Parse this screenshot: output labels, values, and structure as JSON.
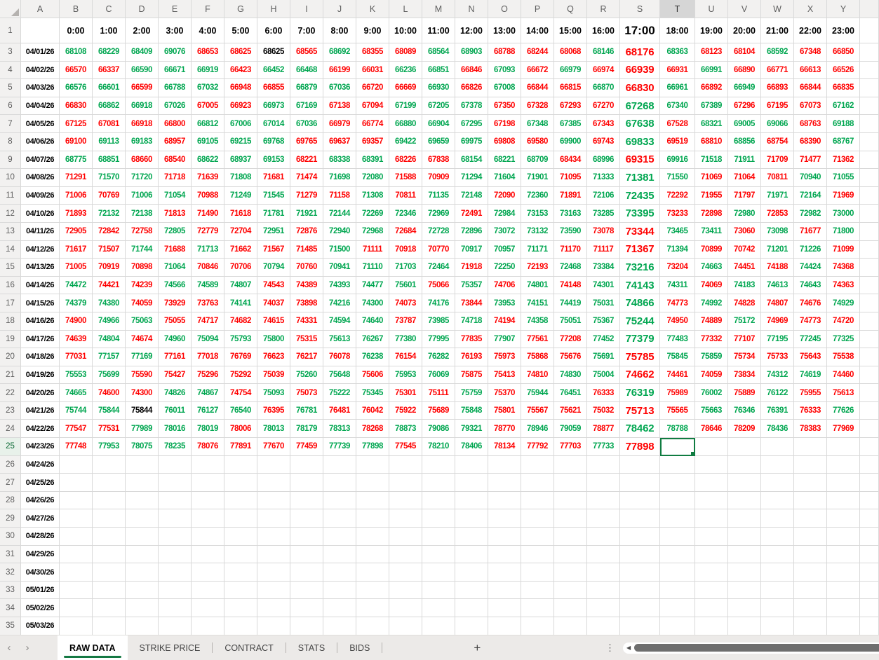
{
  "grid": {
    "col_letters": [
      "A",
      "B",
      "C",
      "D",
      "E",
      "F",
      "G",
      "H",
      "I",
      "J",
      "K",
      "L",
      "M",
      "N",
      "O",
      "P",
      "Q",
      "R",
      "S",
      "T",
      "U",
      "V",
      "W",
      "X",
      "Y"
    ],
    "row1_label": "1",
    "times": [
      "0:00",
      "1:00",
      "2:00",
      "3:00",
      "4:00",
      "5:00",
      "6:00",
      "7:00",
      "8:00",
      "9:00",
      "10:00",
      "11:00",
      "12:00",
      "13:00",
      "14:00",
      "15:00",
      "16:00",
      "17:00",
      "18:00",
      "19:00",
      "20:00",
      "21:00",
      "22:00",
      "23:00"
    ],
    "emphasized_column": "S",
    "active_cell": {
      "reference": "T25",
      "column": "T",
      "row": 25,
      "col_index": 18
    },
    "cell_color_legend": {
      "g": "green #00A650",
      "r": "red #FF0000",
      "k": "black #000000"
    },
    "colors": {
      "green": "#00A650",
      "red": "#FF0000",
      "black": "#000000",
      "accent_green": "#107C41"
    }
  },
  "data_rows": [
    {
      "n": 3,
      "date": "04/01/26",
      "cells": [
        "68108g",
        "68229g",
        "68409g",
        "69076g",
        "68653r",
        "68625r",
        "68625k",
        "68565r",
        "68692g",
        "68355r",
        "68089r",
        "68564g",
        "68903g",
        "68788r",
        "68244r",
        "68068r",
        "68146g",
        "68176r",
        "68363g",
        "68123r",
        "68104r",
        "68592g",
        "67348r",
        "66850r"
      ]
    },
    {
      "n": 4,
      "date": "04/02/26",
      "cells": [
        "66570r",
        "66337r",
        "66590g",
        "66671g",
        "66919g",
        "66423r",
        "66452g",
        "66468g",
        "66199r",
        "66031r",
        "66236g",
        "66851g",
        "66846r",
        "67093g",
        "66672r",
        "66979g",
        "66974r",
        "66939r",
        "66931r",
        "66991g",
        "66890r",
        "66771r",
        "66613r",
        "66526r"
      ]
    },
    {
      "n": 5,
      "date": "04/03/26",
      "cells": [
        "66576g",
        "66601g",
        "66599r",
        "66788g",
        "67032g",
        "66948r",
        "66855r",
        "66879g",
        "67036g",
        "66720r",
        "66669r",
        "66930g",
        "66826r",
        "67008g",
        "66844r",
        "66815r",
        "66870g",
        "66830r",
        "66961g",
        "66892r",
        "66949g",
        "66893r",
        "66844r",
        "66835r"
      ]
    },
    {
      "n": 6,
      "date": "04/04/26",
      "cells": [
        "66830r",
        "66862g",
        "66918g",
        "67026g",
        "67005r",
        "66923r",
        "66973g",
        "67169g",
        "67138r",
        "67094r",
        "67199g",
        "67205g",
        "67378g",
        "67350r",
        "67328r",
        "67293r",
        "67270r",
        "67268g",
        "67340g",
        "67389g",
        "67296r",
        "67195r",
        "67073r",
        "67162g"
      ]
    },
    {
      "n": 7,
      "date": "04/05/26",
      "cells": [
        "67125r",
        "67081r",
        "66918r",
        "66800r",
        "66812g",
        "67006g",
        "67014g",
        "67036g",
        "66979r",
        "66774r",
        "66880g",
        "66904g",
        "67295g",
        "67198r",
        "67348g",
        "67385g",
        "67343r",
        "67638g",
        "67528r",
        "68321g",
        "69005g",
        "69066g",
        "68763r",
        "69188g"
      ]
    },
    {
      "n": 8,
      "date": "04/06/26",
      "cells": [
        "69100r",
        "69113g",
        "69183g",
        "68957r",
        "69105g",
        "69215g",
        "69768g",
        "69765r",
        "69637r",
        "69357r",
        "69422g",
        "69659g",
        "69975g",
        "69808r",
        "69580r",
        "69900g",
        "69743r",
        "69833g",
        "69519r",
        "68810r",
        "68856g",
        "68754r",
        "68390r",
        "68767g"
      ]
    },
    {
      "n": 9,
      "date": "04/07/26",
      "cells": [
        "68775g",
        "68851g",
        "68660r",
        "68540r",
        "68622g",
        "68937g",
        "69153g",
        "68221r",
        "68338g",
        "68391g",
        "68226r",
        "67838r",
        "68154g",
        "68221g",
        "68709g",
        "68434r",
        "68996g",
        "69315r",
        "69916g",
        "71518g",
        "71911g",
        "71709r",
        "71477r",
        "71362r"
      ]
    },
    {
      "n": 10,
      "date": "04/08/26",
      "cells": [
        "71291r",
        "71570g",
        "71720g",
        "71718r",
        "71639r",
        "71808g",
        "71681r",
        "71474r",
        "71698g",
        "72080g",
        "71588r",
        "70909r",
        "71294g",
        "71604g",
        "71901g",
        "71095r",
        "71333g",
        "71381g",
        "71550g",
        "71069r",
        "71064r",
        "70811r",
        "70940g",
        "71055g"
      ]
    },
    {
      "n": 11,
      "date": "04/09/26",
      "cells": [
        "71006r",
        "70769r",
        "71006g",
        "71054g",
        "70988r",
        "71249g",
        "71545g",
        "71279r",
        "71158r",
        "71308g",
        "70811r",
        "71135g",
        "72148g",
        "72090r",
        "72360g",
        "71891r",
        "72106g",
        "72435g",
        "72292r",
        "71955r",
        "71797r",
        "71971g",
        "72164g",
        "71969r"
      ]
    },
    {
      "n": 12,
      "date": "04/10/26",
      "cells": [
        "71893r",
        "72132g",
        "72138g",
        "71813r",
        "71490r",
        "71618r",
        "71781g",
        "71921g",
        "72144g",
        "72269g",
        "72346g",
        "72969g",
        "72491r",
        "72984g",
        "73153g",
        "73163g",
        "73285g",
        "73395g",
        "73233r",
        "72898r",
        "72980g",
        "72853r",
        "72982g",
        "73000g"
      ]
    },
    {
      "n": 13,
      "date": "04/11/26",
      "cells": [
        "72905r",
        "72842r",
        "72758r",
        "72805g",
        "72779r",
        "72704r",
        "72951g",
        "72876r",
        "72940g",
        "72968g",
        "72684r",
        "72728g",
        "72896g",
        "73072g",
        "73132g",
        "73590g",
        "73078r",
        "73344r",
        "73465g",
        "73411g",
        "73060r",
        "73098g",
        "71677r",
        "71800g"
      ]
    },
    {
      "n": 14,
      "date": "04/12/26",
      "cells": [
        "71617r",
        "71507r",
        "71744g",
        "71688r",
        "71713g",
        "71662r",
        "71567r",
        "71485r",
        "71500g",
        "71111r",
        "70918r",
        "70770r",
        "70917g",
        "70957g",
        "71171g",
        "71170r",
        "71117r",
        "71367r",
        "71394g",
        "70899r",
        "70742r",
        "71201g",
        "71226g",
        "71099r"
      ]
    },
    {
      "n": 15,
      "date": "04/13/26",
      "cells": [
        "71005r",
        "70919r",
        "70898r",
        "71064g",
        "70846r",
        "70706r",
        "70794g",
        "70760r",
        "70941g",
        "71110g",
        "71703g",
        "72464g",
        "71918r",
        "72250g",
        "72193r",
        "72468g",
        "73384g",
        "73216g",
        "73204r",
        "74663g",
        "74451r",
        "74188r",
        "74424g",
        "74368r"
      ]
    },
    {
      "n": 16,
      "date": "04/14/26",
      "cells": [
        "74472g",
        "74421r",
        "74239r",
        "74566g",
        "74589g",
        "74807g",
        "74543r",
        "74389r",
        "74393g",
        "74477g",
        "75601g",
        "75066r",
        "75357g",
        "74706r",
        "74801g",
        "74148r",
        "74301g",
        "74143g",
        "74311g",
        "74069r",
        "74183g",
        "74613g",
        "74643g",
        "74363r"
      ]
    },
    {
      "n": 17,
      "date": "04/15/26",
      "cells": [
        "74379g",
        "74380g",
        "74059r",
        "73929r",
        "73763r",
        "74141g",
        "74037r",
        "73898r",
        "74216g",
        "74300g",
        "74073r",
        "74176g",
        "73844r",
        "73953g",
        "74151g",
        "74419g",
        "75031g",
        "74866g",
        "74773r",
        "74992g",
        "74828r",
        "74807r",
        "74676r",
        "74929g"
      ]
    },
    {
      "n": 18,
      "date": "04/16/26",
      "cells": [
        "74900r",
        "74966g",
        "75063g",
        "75055r",
        "74717r",
        "74682r",
        "74615r",
        "74331r",
        "74594g",
        "74640g",
        "73787r",
        "73985g",
        "74718g",
        "74194r",
        "74358g",
        "75051g",
        "75367g",
        "75244g",
        "74950r",
        "74889r",
        "75172g",
        "74969r",
        "74773r",
        "74720r"
      ]
    },
    {
      "n": 19,
      "date": "04/17/26",
      "cells": [
        "74639r",
        "74804g",
        "74674r",
        "74960g",
        "75094g",
        "75793g",
        "75800g",
        "75315r",
        "75613g",
        "76267g",
        "77380g",
        "77995g",
        "77835r",
        "77907g",
        "77561r",
        "77208r",
        "77452g",
        "77379g",
        "77483g",
        "77332r",
        "77107r",
        "77195g",
        "77245g",
        "77325g"
      ]
    },
    {
      "n": 20,
      "date": "04/18/26",
      "cells": [
        "77031r",
        "77157g",
        "77169g",
        "77161r",
        "77018r",
        "76769r",
        "76623r",
        "76217r",
        "76078r",
        "76238g",
        "76154r",
        "76282g",
        "76193r",
        "75973r",
        "75868r",
        "75676r",
        "75691g",
        "75785r",
        "75845g",
        "75859g",
        "75734r",
        "75733r",
        "75643r",
        "75538r"
      ]
    },
    {
      "n": 21,
      "date": "04/19/26",
      "cells": [
        "75553g",
        "75699g",
        "75590r",
        "75427r",
        "75296r",
        "75292r",
        "75039r",
        "75260g",
        "75648g",
        "75606r",
        "75953g",
        "76069g",
        "75875r",
        "75413r",
        "74810r",
        "74830g",
        "75004g",
        "74662r",
        "74461r",
        "74059r",
        "73834r",
        "74312g",
        "74619g",
        "74460r"
      ]
    },
    {
      "n": 22,
      "date": "04/20/26",
      "cells": [
        "74665g",
        "74600r",
        "74300r",
        "74826g",
        "74867g",
        "74754r",
        "75093g",
        "75073r",
        "75222g",
        "75345g",
        "75301r",
        "75111r",
        "75759g",
        "75370r",
        "75944g",
        "76451g",
        "76333r",
        "76319g",
        "75989r",
        "76002g",
        "75889r",
        "76122g",
        "75955r",
        "75613r"
      ]
    },
    {
      "n": 23,
      "date": "04/21/26",
      "cells": [
        "75744g",
        "75844g",
        "75844k",
        "76011g",
        "76127g",
        "76540g",
        "76395r",
        "76781g",
        "76481r",
        "76042r",
        "75922r",
        "75689r",
        "75848g",
        "75801r",
        "75567r",
        "75621r",
        "75032r",
        "75713r",
        "75565r",
        "75663g",
        "76346g",
        "76391g",
        "76333r",
        "77626g"
      ]
    },
    {
      "n": 24,
      "date": "04/22/26",
      "cells": [
        "77547r",
        "77531r",
        "77989g",
        "78016g",
        "78019g",
        "78006r",
        "78013g",
        "78179g",
        "78313g",
        "78268r",
        "78873g",
        "79086g",
        "79321g",
        "78770r",
        "78946g",
        "79059g",
        "78877r",
        "78462g",
        "78788g",
        "78646r",
        "78209r",
        "78436g",
        "78383r",
        "77969r"
      ]
    },
    {
      "n": 25,
      "date": "04/23/26",
      "cells": [
        "77748r",
        "77953g",
        "78075g",
        "78235g",
        "78076r",
        "77891r",
        "77670r",
        "77459r",
        "77739g",
        "77898g",
        "77545r",
        "78210g",
        "78406g",
        "78134r",
        "77792r",
        "77703r",
        "77733g",
        "77898r",
        "",
        "",
        "",
        "",
        "",
        ""
      ]
    }
  ],
  "empty_date_rows": [
    {
      "n": 26,
      "date": "04/24/26"
    },
    {
      "n": 27,
      "date": "04/25/26"
    },
    {
      "n": 28,
      "date": "04/26/26"
    },
    {
      "n": 29,
      "date": "04/27/26"
    },
    {
      "n": 30,
      "date": "04/28/26"
    },
    {
      "n": 31,
      "date": "04/29/26"
    },
    {
      "n": 32,
      "date": "04/30/26"
    },
    {
      "n": 33,
      "date": "05/01/26"
    },
    {
      "n": 34,
      "date": "05/02/26"
    },
    {
      "n": 35,
      "date": "05/03/26"
    }
  ],
  "sheet_tabs": {
    "items": [
      "RAW DATA",
      "STRIKE PRICE",
      "CONTRACT",
      "STATS",
      "BIDS"
    ],
    "active": "RAW DATA",
    "add_label": "+",
    "nav_left": "‹",
    "nav_right": "›",
    "more": "⋮",
    "scroll_left": "◀"
  }
}
